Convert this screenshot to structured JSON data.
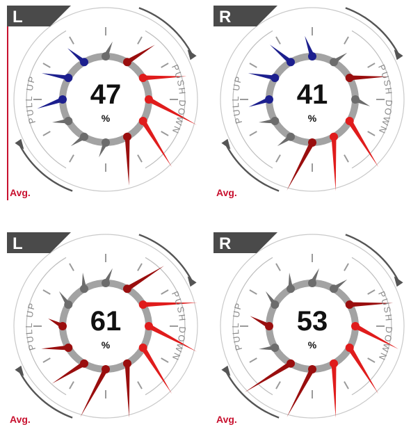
{
  "colors": {
    "pull": "#1c1f8e",
    "push": "#e01c1c",
    "push_dark": "#9a0e0e",
    "neutral": "#6c6c6c",
    "ring": "#a3a3a3",
    "badge": "#4a4a4a",
    "avg_text": "#c8102e"
  },
  "labels": {
    "pull_up": "PULL UP",
    "push_down": "PUSH DOWN",
    "avg": "Avg.",
    "unit": "%"
  },
  "panels": [
    {
      "side": "L",
      "value": "47",
      "left_accent": true,
      "needles": [
        {
          "deg": 0,
          "kind": "neutral",
          "len": 0.3
        },
        {
          "deg": 30,
          "kind": "push_dark",
          "len": 0.6
        },
        {
          "deg": 60,
          "kind": "push",
          "len": 0.8
        },
        {
          "deg": 90,
          "kind": "push",
          "len": 1.0
        },
        {
          "deg": 120,
          "kind": "push",
          "len": 1.0
        },
        {
          "deg": 150,
          "kind": "push_dark",
          "len": 0.9
        },
        {
          "deg": 180,
          "kind": "neutral",
          "len": 0.3
        },
        {
          "deg": 210,
          "kind": "neutral",
          "len": 0.3
        },
        {
          "deg": 240,
          "kind": "neutral",
          "len": 0.3
        },
        {
          "deg": 270,
          "kind": "pull",
          "len": 0.5
        },
        {
          "deg": 300,
          "kind": "pull",
          "len": 0.5
        },
        {
          "deg": 330,
          "kind": "pull",
          "len": 0.4
        }
      ]
    },
    {
      "side": "R",
      "value": "41",
      "left_accent": false,
      "needles": [
        {
          "deg": 0,
          "kind": "pull",
          "len": 0.4
        },
        {
          "deg": 30,
          "kind": "neutral",
          "len": 0.3
        },
        {
          "deg": 60,
          "kind": "push_dark",
          "len": 0.7
        },
        {
          "deg": 90,
          "kind": "neutral",
          "len": 0.3
        },
        {
          "deg": 120,
          "kind": "push",
          "len": 1.0
        },
        {
          "deg": 150,
          "kind": "push",
          "len": 1.0
        },
        {
          "deg": 180,
          "kind": "push_dark",
          "len": 1.0
        },
        {
          "deg": 210,
          "kind": "neutral",
          "len": 0.3
        },
        {
          "deg": 240,
          "kind": "neutral",
          "len": 0.3
        },
        {
          "deg": 270,
          "kind": "pull",
          "len": 0.4
        },
        {
          "deg": 300,
          "kind": "pull",
          "len": 0.5
        },
        {
          "deg": 330,
          "kind": "pull",
          "len": 0.5
        }
      ]
    },
    {
      "side": "L",
      "value": "61",
      "left_accent": false,
      "needles": [
        {
          "deg": 0,
          "kind": "neutral",
          "len": 0.3
        },
        {
          "deg": 30,
          "kind": "push_dark",
          "len": 0.8
        },
        {
          "deg": 60,
          "kind": "push",
          "len": 1.0
        },
        {
          "deg": 90,
          "kind": "push",
          "len": 1.0
        },
        {
          "deg": 120,
          "kind": "push",
          "len": 1.0
        },
        {
          "deg": 150,
          "kind": "push_dark",
          "len": 1.0
        },
        {
          "deg": 180,
          "kind": "push_dark",
          "len": 1.0
        },
        {
          "deg": 210,
          "kind": "push_dark",
          "len": 0.7
        },
        {
          "deg": 240,
          "kind": "push_dark",
          "len": 0.5
        },
        {
          "deg": 270,
          "kind": "push_dark",
          "len": 0.3
        },
        {
          "deg": 300,
          "kind": "neutral",
          "len": 0.3
        },
        {
          "deg": 330,
          "kind": "neutral",
          "len": 0.3
        }
      ]
    },
    {
      "side": "R",
      "value": "53",
      "left_accent": false,
      "needles": [
        {
          "deg": 0,
          "kind": "neutral",
          "len": 0.3
        },
        {
          "deg": 30,
          "kind": "neutral",
          "len": 0.3
        },
        {
          "deg": 60,
          "kind": "push_dark",
          "len": 0.8
        },
        {
          "deg": 90,
          "kind": "push",
          "len": 0.9
        },
        {
          "deg": 120,
          "kind": "push",
          "len": 1.0
        },
        {
          "deg": 150,
          "kind": "push",
          "len": 1.0
        },
        {
          "deg": 180,
          "kind": "push_dark",
          "len": 1.0
        },
        {
          "deg": 210,
          "kind": "push_dark",
          "len": 1.0
        },
        {
          "deg": 240,
          "kind": "neutral",
          "len": 0.3
        },
        {
          "deg": 270,
          "kind": "push_dark",
          "len": 0.4
        },
        {
          "deg": 300,
          "kind": "neutral",
          "len": 0.3
        },
        {
          "deg": 330,
          "kind": "neutral",
          "len": 0.3
        }
      ]
    }
  ]
}
